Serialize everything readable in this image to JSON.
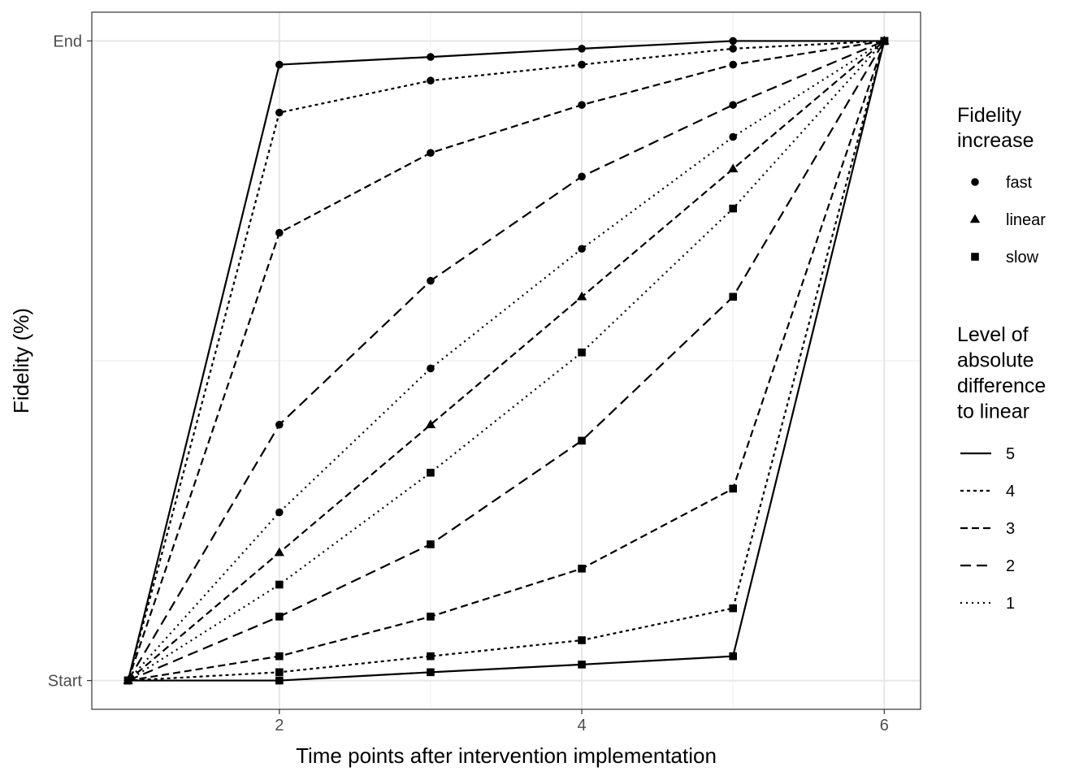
{
  "chart_data": {
    "type": "line",
    "xlabel": "Time points after intervention implementation",
    "ylabel": "Fidelity (%)",
    "x": [
      1,
      2,
      3,
      4,
      5,
      6
    ],
    "xlim": [
      0.76,
      6.24
    ],
    "ylim": [
      -0.045,
      1.045
    ],
    "x_ticks": [
      2,
      4,
      6
    ],
    "x_tick_labels": [
      "2",
      "4",
      "6"
    ],
    "y_ticks": [
      0,
      1
    ],
    "y_tick_labels": [
      "Start",
      "End"
    ],
    "grid": true,
    "legend_position": "right",
    "legend_shape": {
      "title": "Fidelity\nincrease",
      "entries": [
        {
          "label": "fast",
          "shape": "circle"
        },
        {
          "label": "linear",
          "shape": "triangle"
        },
        {
          "label": "slow",
          "shape": "square"
        }
      ]
    },
    "legend_linetype": {
      "title": "Level of\nabsolute\ndifference\nto linear",
      "entries": [
        {
          "label": "5",
          "dash": "solid"
        },
        {
          "label": "4",
          "dash": "short-dash"
        },
        {
          "label": "3",
          "dash": "dash"
        },
        {
          "label": "2",
          "dash": "long-dash"
        },
        {
          "label": "1",
          "dash": "dotted"
        }
      ]
    },
    "series": [
      {
        "increase": "fast",
        "level": "5",
        "values": [
          0,
          0.963,
          0.975,
          0.988,
          1.0,
          1.0
        ]
      },
      {
        "increase": "fast",
        "level": "4",
        "values": [
          0,
          0.888,
          0.938,
          0.963,
          0.988,
          1.0
        ]
      },
      {
        "increase": "fast",
        "level": "3",
        "values": [
          0,
          0.7,
          0.825,
          0.9,
          0.963,
          1.0
        ]
      },
      {
        "increase": "fast",
        "level": "2",
        "values": [
          0,
          0.4,
          0.625,
          0.788,
          0.9,
          1.0
        ]
      },
      {
        "increase": "fast",
        "level": "1",
        "values": [
          0,
          0.263,
          0.488,
          0.675,
          0.85,
          1.0
        ]
      },
      {
        "increase": "linear",
        "level": "0",
        "values": [
          0,
          0.2,
          0.4,
          0.6,
          0.8,
          1.0
        ]
      },
      {
        "increase": "slow",
        "level": "1",
        "values": [
          0,
          0.15,
          0.325,
          0.513,
          0.738,
          1.0
        ]
      },
      {
        "increase": "slow",
        "level": "2",
        "values": [
          0,
          0.1,
          0.213,
          0.375,
          0.6,
          1.0
        ]
      },
      {
        "increase": "slow",
        "level": "3",
        "values": [
          0,
          0.038,
          0.1,
          0.175,
          0.3,
          1.0
        ]
      },
      {
        "increase": "slow",
        "level": "4",
        "values": [
          0,
          0.013,
          0.038,
          0.063,
          0.113,
          1.0
        ]
      },
      {
        "increase": "slow",
        "level": "5",
        "values": [
          0,
          0,
          0.013,
          0.025,
          0.038,
          1.0
        ]
      }
    ]
  }
}
